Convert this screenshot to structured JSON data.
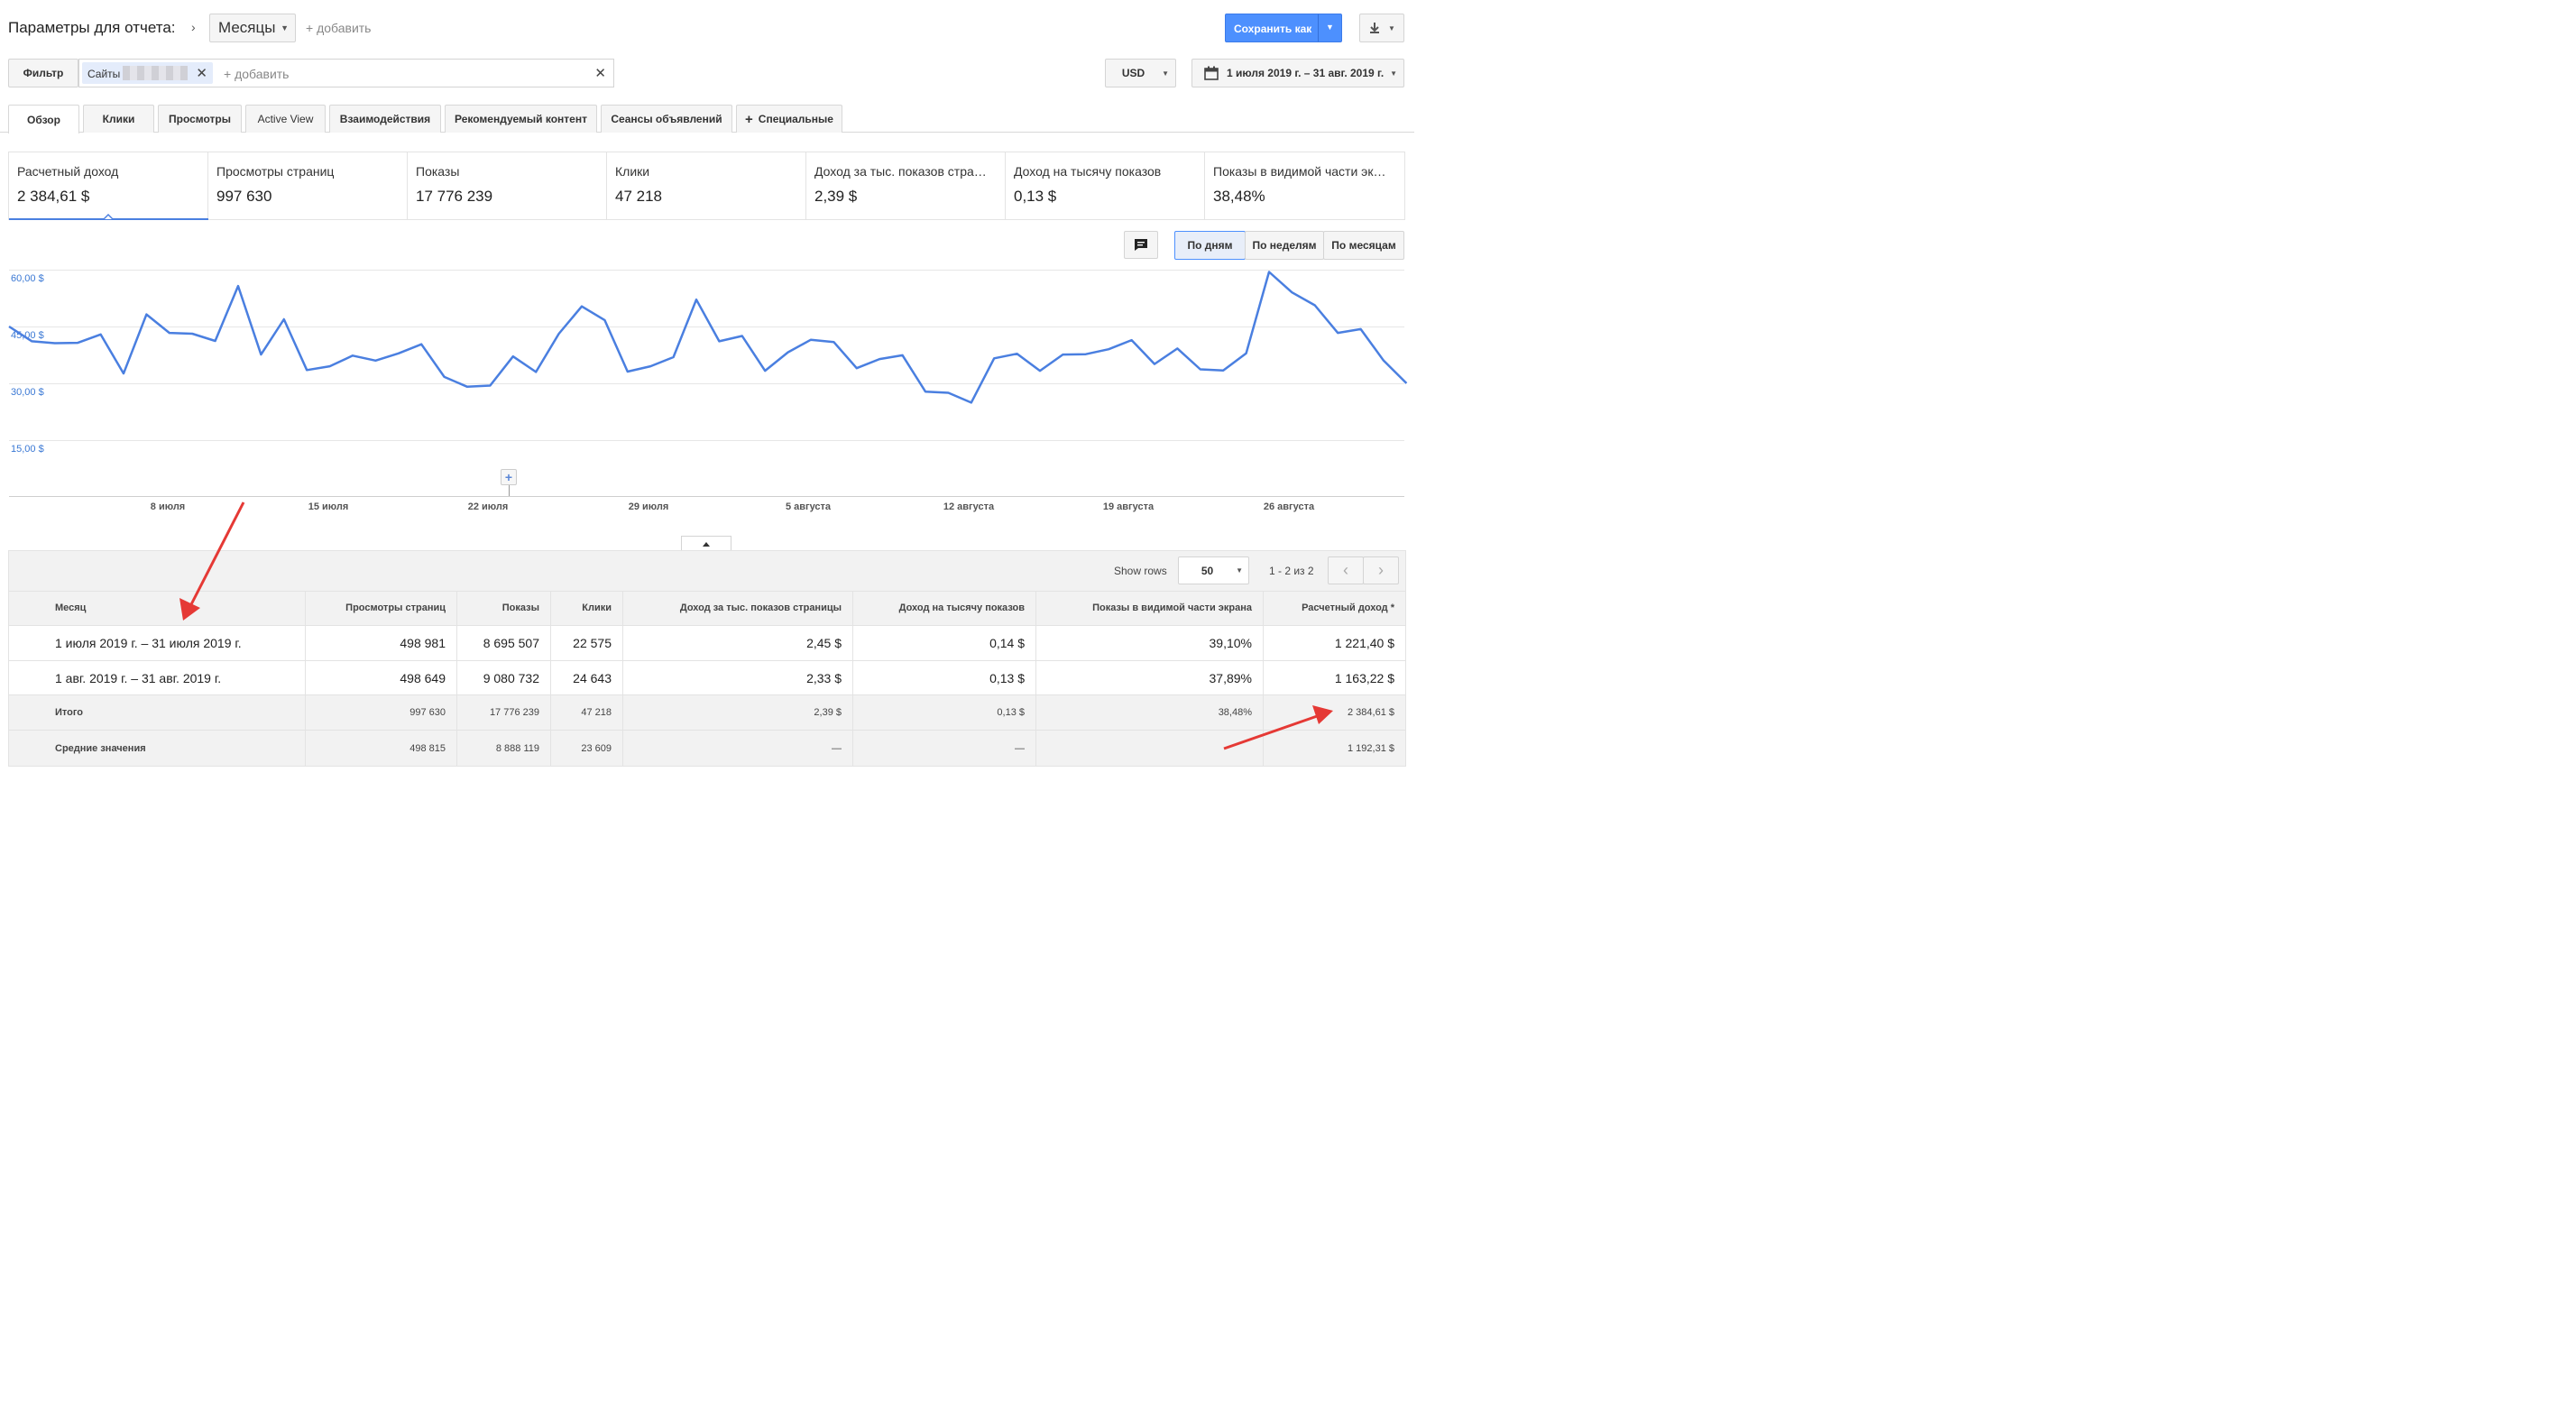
{
  "header": {
    "title": "Параметры для отчета:",
    "dimension": "Месяцы",
    "add_link": "+ добавить",
    "save_label": "Сохранить как"
  },
  "filter": {
    "label": "Фильтр",
    "chip": "Сайты",
    "add_placeholder": "+ добавить",
    "currency": "USD",
    "date_range": "1 июля 2019 г. – 31 авг. 2019 г."
  },
  "tabs": [
    "Обзор",
    "Клики",
    "Просмотры",
    "Active View",
    "Взаимодействия",
    "Рекомендуемый контент",
    "Сеансы объявлений",
    "Специальные"
  ],
  "kpis": [
    {
      "label": "Расчетный доход",
      "value": "2 384,61 $"
    },
    {
      "label": "Просмотры страниц",
      "value": "997 630"
    },
    {
      "label": "Показы",
      "value": "17 776 239"
    },
    {
      "label": "Клики",
      "value": "47 218"
    },
    {
      "label": "Доход за тыс. показов стра…",
      "value": "2,39 $"
    },
    {
      "label": "Доход на тысячу показов",
      "value": "0,13 $"
    },
    {
      "label": "Показы в видимой части эк…",
      "value": "38,48%"
    }
  ],
  "granularity": {
    "day": "По дням",
    "week": "По неделям",
    "month": "По месяцам"
  },
  "chart_data": {
    "type": "line",
    "y_ticks": [
      "60,00 $",
      "45,00 $",
      "30,00 $",
      "15,00 $"
    ],
    "ylim": [
      0,
      67.5
    ],
    "x_ticks": [
      "8 июля",
      "15 июля",
      "22 июля",
      "29 июля",
      "5 августа",
      "12 августа",
      "19 августа",
      "26 августа"
    ],
    "x": [
      "2019-07-01",
      "2019-07-02",
      "2019-07-03",
      "2019-07-04",
      "2019-07-05",
      "2019-07-06",
      "2019-07-07",
      "2019-07-08",
      "2019-07-09",
      "2019-07-10",
      "2019-07-11",
      "2019-07-12",
      "2019-07-13",
      "2019-07-14",
      "2019-07-15",
      "2019-07-16",
      "2019-07-17",
      "2019-07-18",
      "2019-07-19",
      "2019-07-20",
      "2019-07-21",
      "2019-07-22",
      "2019-07-23",
      "2019-07-24",
      "2019-07-25",
      "2019-07-26",
      "2019-07-27",
      "2019-07-28",
      "2019-07-29",
      "2019-07-30",
      "2019-07-31",
      "2019-08-01",
      "2019-08-02",
      "2019-08-03",
      "2019-08-04",
      "2019-08-05",
      "2019-08-06",
      "2019-08-07",
      "2019-08-08",
      "2019-08-09",
      "2019-08-10",
      "2019-08-11",
      "2019-08-12",
      "2019-08-13",
      "2019-08-14",
      "2019-08-15",
      "2019-08-16",
      "2019-08-17",
      "2019-08-18",
      "2019-08-19",
      "2019-08-20",
      "2019-08-21",
      "2019-08-22",
      "2019-08-23",
      "2019-08-24",
      "2019-08-25",
      "2019-08-26",
      "2019-08-27",
      "2019-08-28",
      "2019-08-29",
      "2019-08-30",
      "2019-08-31"
    ],
    "series": [
      {
        "values": [
          45.0,
          41.1,
          40.6,
          40.7,
          42.9,
          32.6,
          48.2,
          43.3,
          43.1,
          41.2,
          55.7,
          37.6,
          46.9,
          33.5,
          34.5,
          37.3,
          36.0,
          37.9,
          40.3,
          31.7,
          29.1,
          29.4,
          37.1,
          33.0,
          43.1,
          50.3,
          46.7,
          33.1,
          34.5,
          36.9,
          52.1,
          41.1,
          42.5,
          33.3,
          38.2,
          41.5,
          40.9,
          34.0,
          36.4,
          37.4,
          27.8,
          27.5,
          24.9,
          36.6,
          37.8,
          33.3,
          37.6,
          37.7,
          39.0,
          41.4,
          35.1,
          39.2,
          33.7,
          33.4,
          37.9,
          59.4,
          54.0,
          50.6,
          43.3,
          44.3,
          36.0,
          30.0
        ]
      }
    ]
  },
  "table": {
    "show_rows_label": "Show rows",
    "rows_value": "50",
    "pagination": "1 - 2 из 2",
    "columns": [
      "Месяц",
      "Просмотры страниц",
      "Показы",
      "Клики",
      "Доход за тыс. показов страницы",
      "Доход на тысячу показов",
      "Показы в видимой части экрана",
      "Расчетный доход *"
    ],
    "rows": [
      [
        "1 июля 2019 г. – 31 июля 2019 г.",
        "498 981",
        "8 695 507",
        "22 575",
        "2,45 $",
        "0,14 $",
        "39,10%",
        "1 221,40 $"
      ],
      [
        "1 авг. 2019 г. – 31 авг. 2019 г.",
        "498 649",
        "9 080 732",
        "24 643",
        "2,33 $",
        "0,13 $",
        "37,89%",
        "1 163,22 $"
      ]
    ],
    "total": [
      "Итого",
      "997 630",
      "17 776 239",
      "47 218",
      "2,39 $",
      "0,13 $",
      "38,48%",
      "2 384,61 $"
    ],
    "average": [
      "Средние значения",
      "498 815",
      "8 888 119",
      "23 609",
      "—",
      "—",
      "",
      "1 192,31 $"
    ]
  },
  "colors": {
    "accent": "#4d90fe",
    "line": "#4a7fe0",
    "arrow": "#e53935"
  }
}
